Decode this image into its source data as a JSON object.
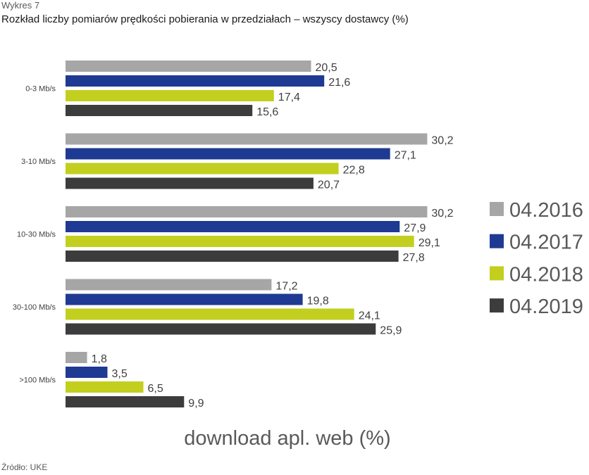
{
  "figure_label": "Wykres 7",
  "source": "Źródło: UKE",
  "colors": {
    "04.2016": "#a6a6a6",
    "04.2017": "#1f3a93",
    "04.2018": "#c2cf1f",
    "04.2019": "#3c3c3c"
  },
  "chart_data": {
    "type": "bar",
    "orientation": "horizontal",
    "title": "Rozkład liczby pomiarów prędkości pobierania w przedziałach – wszyscy dostawcy (%)",
    "xlabel": "download apl. web (%)",
    "ylabel": "",
    "categories": [
      "0-3 Mb/s",
      "3-10 Mb/s",
      "10-30 Mb/s",
      "30-100 Mb/s",
      ">100 Mb/s"
    ],
    "series": [
      {
        "name": "04.2016",
        "values": [
          20.5,
          30.2,
          30.2,
          17.2,
          1.8
        ]
      },
      {
        "name": "04.2017",
        "values": [
          21.6,
          27.1,
          27.9,
          19.8,
          3.5
        ]
      },
      {
        "name": "04.2018",
        "values": [
          17.4,
          22.8,
          29.1,
          24.1,
          6.5
        ]
      },
      {
        "name": "04.2019",
        "values": [
          15.6,
          20.7,
          27.8,
          25.9,
          9.9
        ]
      }
    ],
    "value_labels": [
      [
        "20,5",
        "30,2",
        "30,2",
        "17,2",
        "1,8"
      ],
      [
        "21,6",
        "27,1",
        "27,9",
        "19,8",
        "3,5"
      ],
      [
        "17,4",
        "22,8",
        "29,1",
        "24,1",
        "6,5"
      ],
      [
        "15,6",
        "20,7",
        "27,8",
        "25,9",
        "9,9"
      ]
    ],
    "xlim": [
      0,
      35
    ],
    "grid": false,
    "legend": "right"
  }
}
